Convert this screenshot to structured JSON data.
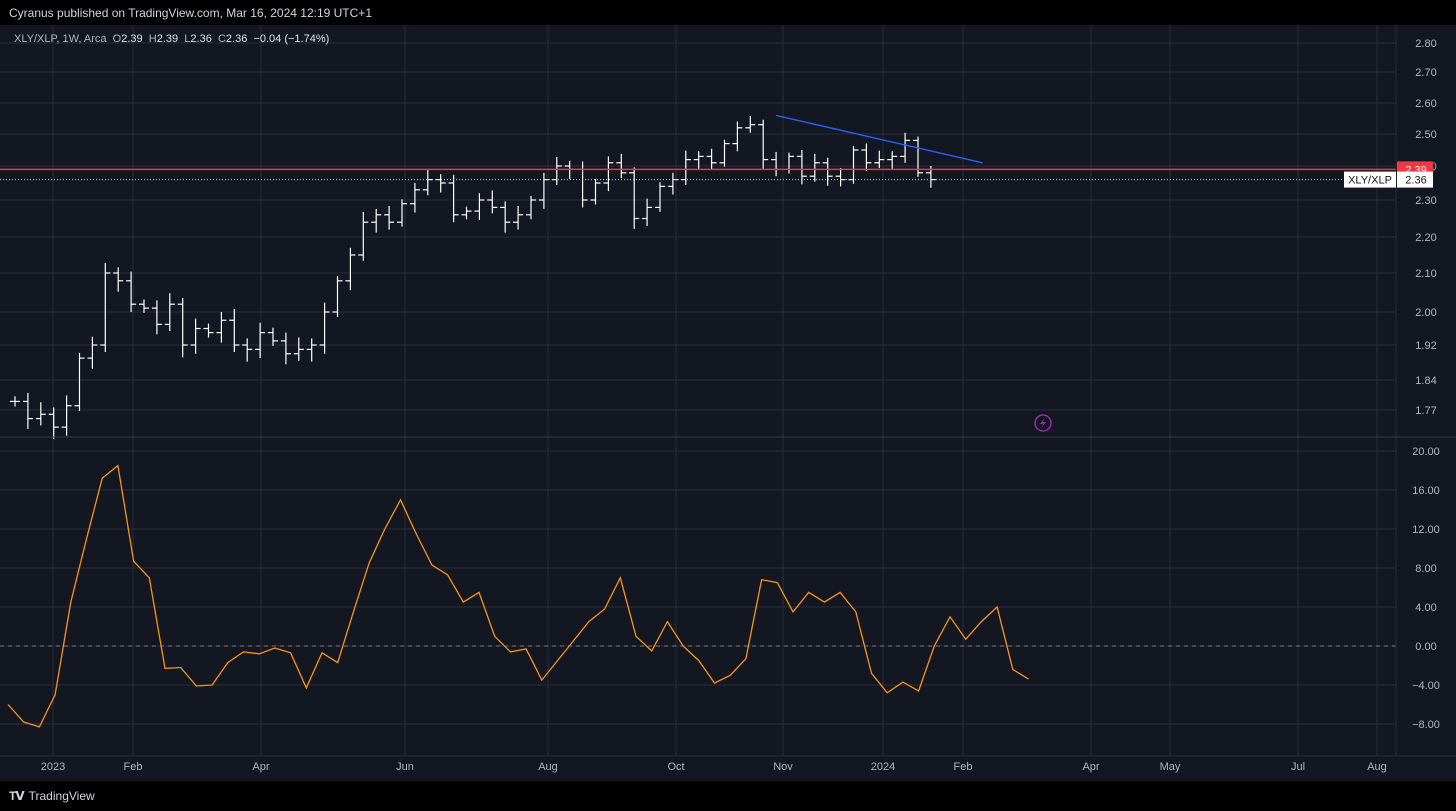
{
  "header": {
    "publish_text": "Cyranus published on TradingView.com, Mar 16, 2024 12:19 UTC+1"
  },
  "legend": {
    "symbol": "XLY/XLP, 1W, Arca",
    "o_label": "O",
    "o_value": "2.39",
    "h_label": "H",
    "h_value": "2.39",
    "l_label": "L",
    "l_value": "2.36",
    "c_label": "C",
    "c_value": "2.36",
    "change": "−0.04 (−1.74%)"
  },
  "price_tags": {
    "red_value": "2.39",
    "symbol_tag": "XLY/XLP",
    "last_value": "2.36"
  },
  "footer": {
    "brand": "TradingView",
    "brand_icon": "tradingview-logo-icon"
  },
  "colors": {
    "background": "#131722",
    "grid": "#2a2e39",
    "candle": "#ffffff",
    "red_line": "#f23645",
    "trend_line": "#2962ff",
    "oscillator": "#f7931a",
    "axis_text": "#b2b5be",
    "flash_icon": "#9c27b0"
  },
  "chart_data": [
    {
      "type": "ohlc-bar",
      "series_name": "XLY/XLP",
      "x_ticks": [
        "2023",
        "Feb",
        "Apr",
        "Jun",
        "Aug",
        "Oct",
        "Nov",
        "2024",
        "Feb",
        "Apr",
        "May",
        "Jul",
        "Aug"
      ],
      "y_ticks": [
        "2.80",
        "2.70",
        "2.60",
        "2.50",
        "2.40",
        "2.30",
        "2.20",
        "2.10",
        "2.00",
        "1.92",
        "1.84",
        "1.77"
      ],
      "ylim": [
        1.74,
        2.84
      ],
      "close_values": [
        1.79,
        1.75,
        1.76,
        1.73,
        1.78,
        1.89,
        1.92,
        2.1,
        2.08,
        2.02,
        2.01,
        1.97,
        2.02,
        1.92,
        1.96,
        1.95,
        1.98,
        1.92,
        1.91,
        1.95,
        1.93,
        1.9,
        1.91,
        1.92,
        2.0,
        2.08,
        2.15,
        2.24,
        2.26,
        2.24,
        2.29,
        2.33,
        2.36,
        2.35,
        2.26,
        2.27,
        2.3,
        2.28,
        2.24,
        2.26,
        2.3,
        2.36,
        2.4,
        2.39,
        2.3,
        2.35,
        2.41,
        2.38,
        2.25,
        2.28,
        2.34,
        2.36,
        2.42,
        2.43,
        2.41,
        2.47,
        2.52,
        2.53,
        2.42,
        2.39,
        2.43,
        2.37,
        2.41,
        2.37,
        2.36,
        2.45,
        2.41,
        2.42,
        2.43,
        2.48,
        2.38,
        2.36
      ],
      "horizontal_line": 2.39,
      "last_price_line": 2.36,
      "trend_line": {
        "from_week": 59,
        "from_value": 2.56,
        "to_week": 75,
        "to_value": 2.41
      }
    },
    {
      "type": "line",
      "series_name": "Oscillator",
      "y_ticks": [
        "20.00",
        "16.00",
        "12.00",
        "8.00",
        "4.00",
        "0.00",
        "−4.00",
        "−8.00"
      ],
      "ylim": [
        -10,
        21
      ],
      "zero_line": 0,
      "values": [
        -6,
        -7.8,
        -8.3,
        -5,
        4.5,
        11,
        17.2,
        18.5,
        8.7,
        7,
        -2.3,
        -2.2,
        -4.1,
        -4,
        -1.7,
        -0.6,
        -0.8,
        -0.2,
        -0.7,
        -4.3,
        -0.7,
        -1.7,
        3.5,
        8.5,
        12,
        15,
        11.5,
        8.3,
        7.3,
        4.5,
        5.5,
        1,
        -0.6,
        -0.3,
        -3.5,
        -1.5,
        0.5,
        2.5,
        3.8,
        7,
        1,
        -0.5,
        2.5,
        0,
        -1.5,
        -3.8,
        -3,
        -1.3,
        6.8,
        6.5,
        3.5,
        5.5,
        4.5,
        5.5,
        3.5,
        -2.8,
        -4.8,
        -3.7,
        -4.6,
        0,
        3,
        0.7,
        2.5,
        4,
        -2.4,
        -3.4
      ]
    }
  ]
}
